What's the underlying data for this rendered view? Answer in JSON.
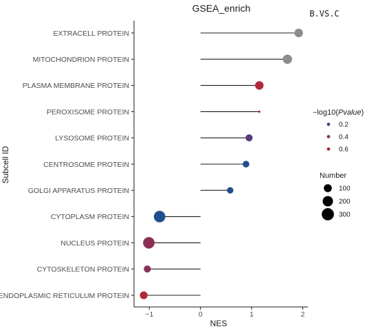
{
  "chart_data": {
    "type": "lollipop",
    "title": "GSEA_enrich",
    "corner_label": "B.VS.C",
    "xlabel": "NES",
    "ylabel": "Subcell ID",
    "xlim": [
      -1.3,
      2.1
    ],
    "xticks": [
      -1,
      0,
      1,
      2
    ],
    "xtick_labels": [
      "−1",
      "0",
      "1",
      "2"
    ],
    "categories": [
      "EXTRACELL PROTEIN",
      "MITOCHONDRION PROTEIN",
      "PLASMA MEMBRANE PROTEIN",
      "PEROXISOME PROTEIN",
      "LYSOSOME PROTEIN",
      "CENTROSOME PROTEIN",
      "GOLGI APPARATUS PROTEIN",
      "CYTOPLASM PROTEIN",
      "NUCLEUS PROTEIN",
      "CYTOSKELETON PROTEIN",
      "ENDOPLASMIC RETICULUM PROTEIN"
    ],
    "nes": [
      1.92,
      1.7,
      1.15,
      1.15,
      0.95,
      0.89,
      0.58,
      -0.8,
      -1.01,
      -1.04,
      -1.11
    ],
    "number": [
      120,
      150,
      120,
      0,
      70,
      60,
      55,
      260,
      260,
      70,
      90
    ],
    "neglog10_pvalue": [
      null,
      null,
      0.65,
      0.65,
      0.3,
      0.2,
      0.05,
      0.05,
      0.35,
      0.4,
      0.6
    ],
    "na_color": "#8c8c8c",
    "color_legend": {
      "title_prefix": "−log10(",
      "title_italic": "Pvalue",
      "title_suffix": ")",
      "labels": [
        "0.2",
        "0.4",
        "0.6"
      ],
      "values": [
        0.2,
        0.4,
        0.6
      ],
      "colors": [
        "#5a3a7a",
        "#8a3056",
        "#b0283a"
      ]
    },
    "size_legend": {
      "title": "Number",
      "labels": [
        "100",
        "200",
        "300"
      ],
      "values": [
        100,
        200,
        300
      ]
    },
    "grid": false
  }
}
